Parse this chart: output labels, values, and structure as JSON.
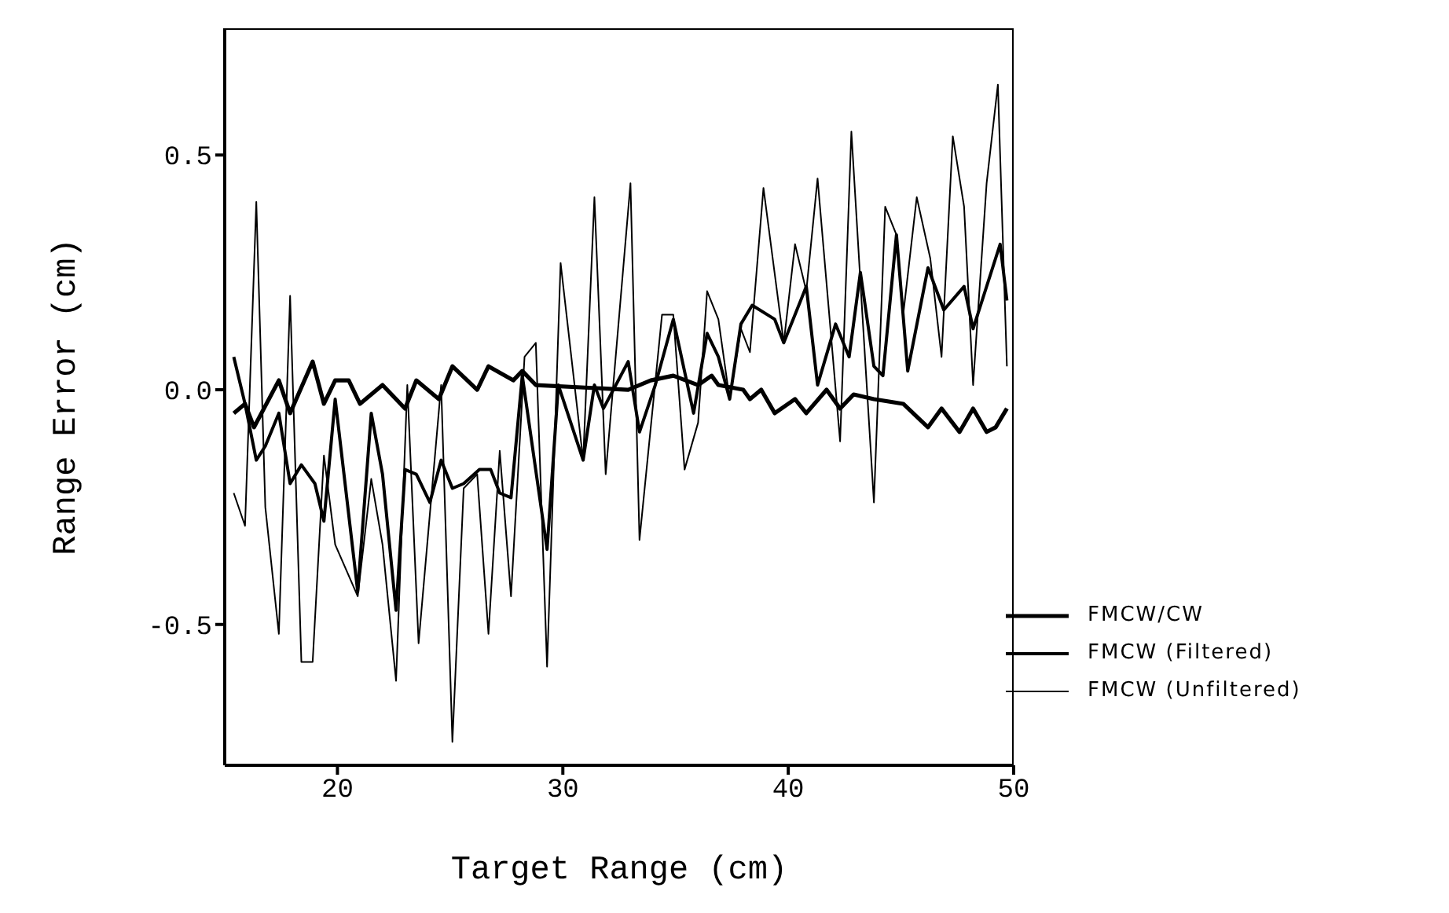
{
  "chart_data": {
    "type": "line",
    "xlabel": "Target Range (cm)",
    "ylabel": "Range Error (cm)",
    "xlim": [
      15,
      50
    ],
    "xticks": [
      20,
      30,
      40,
      50
    ],
    "ylim": [
      -0.8,
      0.77
    ],
    "yticks": [
      {
        "value": -0.5,
        "label": "-0.5"
      },
      {
        "value": 0,
        "label": "0.0"
      },
      {
        "value": 0.5,
        "label": "0.5"
      }
    ],
    "legend": "bottom right",
    "marker": "none",
    "line_style": "solid",
    "series": [
      {
        "name": "FMCW/CW",
        "color": "#000000",
        "x": [
          15.4,
          15.9,
          16.3,
          17.4,
          17.9,
          18.9,
          19.4,
          19.9,
          20.5,
          21.0,
          22.0,
          23.0,
          23.5,
          24.5,
          25.1,
          26.2,
          26.7,
          27.8,
          28.2,
          28.8,
          32.9,
          33.9,
          34.9,
          36.0,
          36.6,
          36.9,
          38.0,
          38.3,
          38.8,
          39.4,
          40.3,
          40.8,
          41.7,
          42.3,
          42.9,
          43.8,
          45.1,
          46.2,
          46.8,
          47.6,
          48.2,
          48.8,
          49.2,
          49.7
        ],
        "values": [
          -0.05,
          -0.03,
          -0.08,
          0.02,
          -0.05,
          0.06,
          -0.03,
          0.02,
          0.02,
          -0.03,
          0.01,
          -0.04,
          0.02,
          -0.02,
          0.05,
          0,
          0.05,
          0.02,
          0.04,
          0.01,
          0,
          0.02,
          0.03,
          0.01,
          0.03,
          0.01,
          0,
          -0.02,
          0,
          -0.05,
          -0.02,
          -0.05,
          0,
          -0.04,
          -0.01,
          -0.02,
          -0.03,
          -0.08,
          -0.04,
          -0.09,
          -0.04,
          -0.09,
          -0.08,
          -0.04
        ]
      },
      {
        "name": "FMCW (Filtered)",
        "color": "#000000",
        "x": [
          15.4,
          15.9,
          16.4,
          16.8,
          17.4,
          17.9,
          18.4,
          19.0,
          19.4,
          19.9,
          20.9,
          21.5,
          22.0,
          22.6,
          23.0,
          23.5,
          24.1,
          24.6,
          25.1,
          25.6,
          26.3,
          26.8,
          27.2,
          27.7,
          28.2,
          29.3,
          29.8,
          30.9,
          31.4,
          31.8,
          32.9,
          33.4,
          34.1,
          34.9,
          35.8,
          36.4,
          36.9,
          37.4,
          37.9,
          38.4,
          39.4,
          39.8,
          40.8,
          41.3,
          42.1,
          42.7,
          43.2,
          43.8,
          44.2,
          44.8,
          45.3,
          46.2,
          46.9,
          47.8,
          48.2,
          49.4,
          49.7
        ],
        "values": [
          0.07,
          -0.03,
          -0.15,
          -0.12,
          -0.05,
          -0.2,
          -0.16,
          -0.2,
          -0.28,
          -0.02,
          -0.43,
          -0.05,
          -0.18,
          -0.47,
          -0.17,
          -0.18,
          -0.24,
          -0.15,
          -0.21,
          -0.2,
          -0.17,
          -0.17,
          -0.22,
          -0.23,
          0.03,
          -0.34,
          0.01,
          -0.15,
          0.01,
          -0.04,
          0.06,
          -0.09,
          0.01,
          0.15,
          -0.05,
          0.12,
          0.07,
          -0.02,
          0.14,
          0.18,
          0.15,
          0.1,
          0.22,
          0.01,
          0.14,
          0.07,
          0.25,
          0.05,
          0.03,
          0.33,
          0.04,
          0.26,
          0.17,
          0.22,
          0.13,
          0.31,
          0.19
        ]
      },
      {
        "name": "FMCW (Unfiltered)",
        "color": "#000000",
        "x": [
          15.4,
          15.9,
          16.4,
          16.8,
          17.4,
          17.9,
          18.4,
          18.9,
          19.4,
          19.9,
          20.9,
          21.5,
          22.0,
          22.6,
          23.1,
          23.6,
          24.6,
          25.1,
          25.6,
          26.2,
          26.7,
          27.2,
          27.7,
          28.3,
          28.8,
          29.3,
          29.9,
          30.9,
          31.4,
          31.9,
          33.0,
          33.4,
          34.4,
          34.9,
          35.4,
          36.0,
          36.4,
          36.9,
          37.4,
          37.9,
          38.3,
          38.9,
          39.8,
          40.3,
          40.8,
          41.3,
          42.3,
          42.8,
          43.2,
          43.8,
          44.3,
          44.8,
          45.1,
          45.7,
          46.3,
          46.8,
          47.3,
          47.8,
          48.2,
          48.8,
          49.3,
          49.7
        ],
        "values": [
          -0.22,
          -0.29,
          0.4,
          -0.25,
          -0.52,
          0.2,
          -0.58,
          -0.58,
          -0.14,
          -0.33,
          -0.44,
          -0.19,
          -0.33,
          -0.62,
          0.01,
          -0.54,
          0.01,
          -0.75,
          -0.21,
          -0.18,
          -0.52,
          -0.13,
          -0.44,
          0.07,
          0.1,
          -0.59,
          0.27,
          -0.15,
          0.41,
          -0.18,
          0.44,
          -0.32,
          0.16,
          0.16,
          -0.17,
          -0.07,
          0.21,
          0.15,
          -0.02,
          0.13,
          0.08,
          0.43,
          0.1,
          0.31,
          0.21,
          0.45,
          -0.11,
          0.55,
          0.23,
          -0.24,
          0.39,
          0.33,
          0.16,
          0.41,
          0.28,
          0.07,
          0.54,
          0.39,
          0.01,
          0.44,
          0.65,
          0.05
        ]
      }
    ]
  }
}
